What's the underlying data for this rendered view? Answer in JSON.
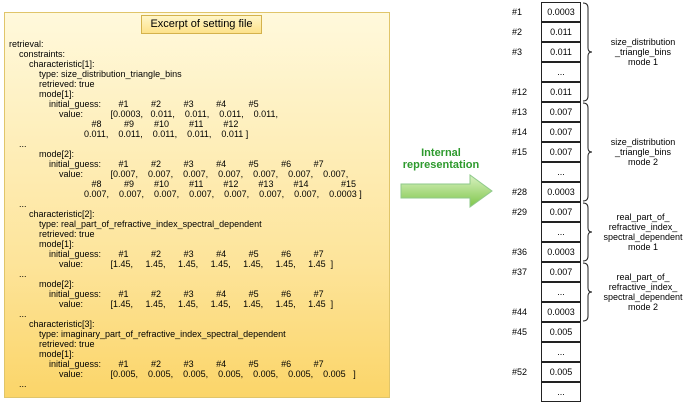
{
  "title": "Excerpt of setting file",
  "arrow_label": [
    "Internal",
    "representation"
  ],
  "config_lines": [
    {
      "indent": 0,
      "text": "retrieval:"
    },
    {
      "indent": 1,
      "text": "constraints:"
    },
    {
      "indent": 2,
      "text": "characteristic[1]:"
    },
    {
      "indent": 3,
      "text": "type: size_distribution_triangle_bins"
    },
    {
      "indent": 3,
      "text": "retrieved: true"
    },
    {
      "indent": 3,
      "text": "mode[1]:"
    },
    {
      "indent": 4,
      "text": "initial_guess:       #1         #2         #3         #4         #5"
    },
    {
      "indent": 5,
      "text": "value:           [0.0003,   0.011,    0.011,    0.011,    0.011,"
    },
    {
      "indent": 6,
      "text": "             #8         #9        #10        #11        #12"
    },
    {
      "indent": 6,
      "text": "          0.011,    0.011,    0.011,    0.011,    0.011 ]"
    },
    {
      "indent": 1,
      "text": "..."
    },
    {
      "indent": 3,
      "text": "mode[2]:"
    },
    {
      "indent": 4,
      "text": "initial_guess:       #1         #2         #3         #4         #5         #6         #7"
    },
    {
      "indent": 5,
      "text": "value:           [0.007,    0.007,    0.007,    0.007,    0.007,    0.007,    0.007,"
    },
    {
      "indent": 6,
      "text": "             #8         #9        #10        #11        #12        #13        #14             #15"
    },
    {
      "indent": 6,
      "text": "          0.007,    0.007,    0.007,    0.007,    0.007,    0.007,    0.007,    0.0003 ]"
    },
    {
      "indent": 1,
      "text": "..."
    },
    {
      "indent": 2,
      "text": "characteristic[2]:"
    },
    {
      "indent": 3,
      "text": "type: real_part_of_refractive_index_spectral_dependent"
    },
    {
      "indent": 3,
      "text": "retrieved: true"
    },
    {
      "indent": 3,
      "text": "mode[1]:"
    },
    {
      "indent": 4,
      "text": "initial_guess:       #1         #2         #3         #4         #5         #6         #7"
    },
    {
      "indent": 5,
      "text": "value:           [1.45,     1.45,     1.45,     1.45,     1.45,     1.45,     1.45  ]"
    },
    {
      "indent": 1,
      "text": "..."
    },
    {
      "indent": 3,
      "text": "mode[2]:"
    },
    {
      "indent": 4,
      "text": "initial_guess:       #1         #2         #3         #4         #5         #6         #7"
    },
    {
      "indent": 5,
      "text": "value:           [1.45,     1.45,     1.45,     1.45,     1.45,     1.45,     1.45  ]"
    },
    {
      "indent": 1,
      "text": "..."
    },
    {
      "indent": 2,
      "text": "characteristic[3]:"
    },
    {
      "indent": 3,
      "text": "type: imaginary_part_of_refractive_index_spectral_dependent"
    },
    {
      "indent": 3,
      "text": "retrieved: true"
    },
    {
      "indent": 3,
      "text": "mode[1]:"
    },
    {
      "indent": 4,
      "text": "initial_guess:       #1         #2         #3         #4         #5         #6         #7"
    },
    {
      "indent": 5,
      "text": "value:           [0.005,    0.005,    0.005,    0.005,    0.005,    0.005,    0.005   ]"
    },
    {
      "indent": 1,
      "text": "..."
    }
  ],
  "array_cells": [
    {
      "index": "#1",
      "value": "0.0003"
    },
    {
      "index": "#2",
      "value": "0.011"
    },
    {
      "index": "#3",
      "value": "0.011"
    },
    {
      "index": "",
      "value": "..."
    },
    {
      "index": "#12",
      "value": "0.011"
    },
    {
      "index": "#13",
      "value": "0.007"
    },
    {
      "index": "#14",
      "value": "0.007"
    },
    {
      "index": "#15",
      "value": "0.007"
    },
    {
      "index": "",
      "value": "..."
    },
    {
      "index": "#28",
      "value": "0.0003"
    },
    {
      "index": "#29",
      "value": "0.007"
    },
    {
      "index": "",
      "value": "..."
    },
    {
      "index": "#36",
      "value": "0.0003"
    },
    {
      "index": "#37",
      "value": "0.007"
    },
    {
      "index": "",
      "value": "..."
    },
    {
      "index": "#44",
      "value": "0.0003"
    },
    {
      "index": "#45",
      "value": "0.005"
    },
    {
      "index": "",
      "value": "..."
    },
    {
      "index": "#52",
      "value": "0.005"
    },
    {
      "index": "",
      "value": "..."
    }
  ],
  "groups": [
    {
      "label": [
        "size_distribution",
        "_triangle_bins",
        "mode 1"
      ]
    },
    {
      "label": [
        "size_distribution",
        "_triangle_bins",
        "mode 2"
      ]
    },
    {
      "label": [
        "real_part_of_",
        "refractive_index_",
        "spectral_dependent",
        "mode 1"
      ]
    },
    {
      "label": [
        "real_part_of_",
        "refractive_index_",
        "spectral_dependent",
        "mode 2"
      ]
    }
  ],
  "colors": {
    "arrow": "#7fc64a",
    "arrow_label": "#2e9a2e",
    "panel": "#fde49a"
  }
}
